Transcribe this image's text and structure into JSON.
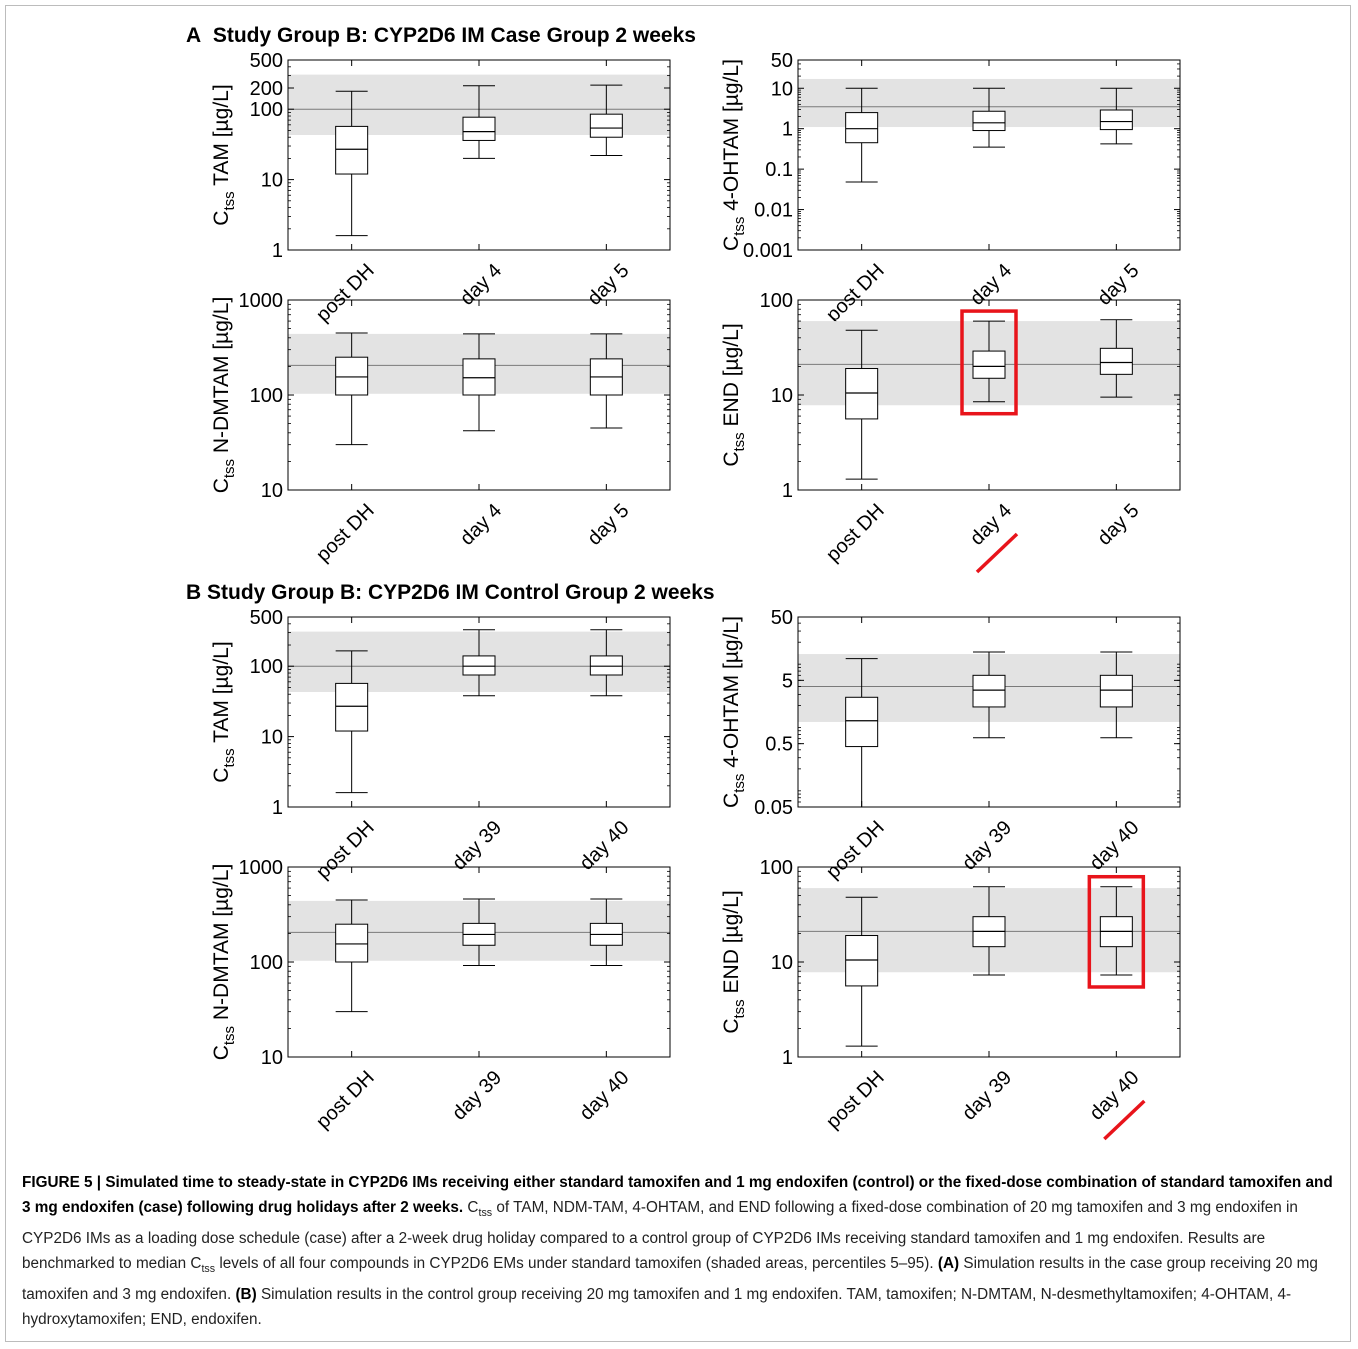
{
  "panels": [
    {
      "label": "A",
      "title": "Study Group B: CYP2D6 IM Case Group 2 weeks",
      "charts": [
        {
          "type": "box",
          "ylabel": "TAM [µg/L]",
          "yscale": "log",
          "ylim": [
            1,
            500
          ],
          "yticks": [
            "1",
            "10",
            "100",
            "200",
            "500"
          ],
          "categories": [
            "post DH",
            "day 4",
            "day 5"
          ],
          "reference_band": {
            "p5": 43,
            "median": 100,
            "p95": 310
          },
          "boxes": [
            {
              "min": 1.6,
              "q1": 12,
              "median": 27,
              "q3": 57,
              "max": 180
            },
            {
              "min": 20,
              "q1": 36,
              "median": 48,
              "q3": 77,
              "max": 215
            },
            {
              "min": 22,
              "q1": 40,
              "median": 54,
              "q3": 85,
              "max": 220
            }
          ]
        },
        {
          "type": "box",
          "ylabel": "4-OHTAM [µg/L]",
          "yscale": "log",
          "ylim": [
            0.001,
            50
          ],
          "yticks": [
            "0.001",
            "0.01",
            "0.1",
            "1",
            "10",
            "50"
          ],
          "categories": [
            "post DH",
            "day 4",
            "day 5"
          ],
          "reference_band": {
            "p5": 1.1,
            "median": 3.5,
            "p95": 17
          },
          "boxes": [
            {
              "min": 0.048,
              "q1": 0.45,
              "median": 1.0,
              "q3": 2.5,
              "max": 10
            },
            {
              "min": 0.35,
              "q1": 0.9,
              "median": 1.4,
              "q3": 2.7,
              "max": 10
            },
            {
              "min": 0.42,
              "q1": 0.95,
              "median": 1.5,
              "q3": 2.9,
              "max": 10
            }
          ]
        },
        {
          "type": "box",
          "ylabel": "N-DMTAM [µg/L]",
          "yscale": "log",
          "ylim": [
            10,
            1000
          ],
          "yticks": [
            "10",
            "100",
            "1000"
          ],
          "categories": [
            "post DH",
            "day 4",
            "day 5"
          ],
          "reference_band": {
            "p5": 103,
            "median": 205,
            "p95": 440
          },
          "boxes": [
            {
              "min": 30,
              "q1": 100,
              "median": 155,
              "q3": 250,
              "max": 450
            },
            {
              "min": 42,
              "q1": 100,
              "median": 152,
              "q3": 240,
              "max": 440
            },
            {
              "min": 45,
              "q1": 100,
              "median": 155,
              "q3": 240,
              "max": 440
            }
          ]
        },
        {
          "type": "box",
          "ylabel": "END [µg/L]",
          "yscale": "log",
          "ylim": [
            1,
            100
          ],
          "yticks": [
            "1",
            "10",
            "100"
          ],
          "categories": [
            "post DH",
            "day 4",
            "day 5"
          ],
          "reference_band": {
            "p5": 7.8,
            "median": 21,
            "p95": 60
          },
          "highlight_index": 1,
          "boxes": [
            {
              "min": 1.3,
              "q1": 5.6,
              "median": 10.5,
              "q3": 19,
              "max": 48
            },
            {
              "min": 8.5,
              "q1": 15,
              "median": 20,
              "q3": 29,
              "max": 60
            },
            {
              "min": 9.5,
              "q1": 16.5,
              "median": 22,
              "q3": 31,
              "max": 62
            }
          ]
        }
      ]
    },
    {
      "label": "B",
      "title": "Study Group B: CYP2D6 IM Control Group 2 weeks",
      "charts": [
        {
          "type": "box",
          "ylabel": "TAM [µg/L]",
          "yscale": "log",
          "ylim": [
            1,
            500
          ],
          "yticks": [
            "1",
            "10",
            "100",
            "500"
          ],
          "categories": [
            "post DH",
            "day 39",
            "day 40"
          ],
          "reference_band": {
            "p5": 43,
            "median": 100,
            "p95": 310
          },
          "boxes": [
            {
              "min": 1.6,
              "q1": 12,
              "median": 27,
              "q3": 57,
              "max": 165
            },
            {
              "min": 38,
              "q1": 75,
              "median": 100,
              "q3": 140,
              "max": 330
            },
            {
              "min": 38,
              "q1": 75,
              "median": 100,
              "q3": 140,
              "max": 330
            }
          ]
        },
        {
          "type": "box",
          "ylabel": "4-OHTAM [µg/L]",
          "yscale": "log",
          "ylim": [
            0.05,
            50
          ],
          "yticks": [
            "0.05",
            "0.5",
            "5",
            "50"
          ],
          "categories": [
            "post DH",
            "day 39",
            "day 40"
          ],
          "reference_band": {
            "p5": 1.1,
            "median": 4,
            "p95": 13
          },
          "boxes": [
            {
              "min": 0.05,
              "q1": 0.45,
              "median": 1.15,
              "q3": 2.7,
              "max": 11
            },
            {
              "min": 0.62,
              "q1": 1.9,
              "median": 3.5,
              "q3": 6.0,
              "max": 14
            },
            {
              "min": 0.62,
              "q1": 1.9,
              "median": 3.5,
              "q3": 6.0,
              "max": 14
            }
          ]
        },
        {
          "type": "box",
          "ylabel": "N-DMTAM [µg/L]",
          "yscale": "log",
          "ylim": [
            10,
            1000
          ],
          "yticks": [
            "10",
            "100",
            "1000"
          ],
          "categories": [
            "post DH",
            "day 39",
            "day 40"
          ],
          "reference_band": {
            "p5": 103,
            "median": 205,
            "p95": 440
          },
          "boxes": [
            {
              "min": 30,
              "q1": 100,
              "median": 155,
              "q3": 250,
              "max": 450
            },
            {
              "min": 92,
              "q1": 150,
              "median": 195,
              "q3": 255,
              "max": 460
            },
            {
              "min": 92,
              "q1": 150,
              "median": 195,
              "q3": 255,
              "max": 460
            }
          ]
        },
        {
          "type": "box",
          "ylabel": "END [µg/L]",
          "yscale": "log",
          "ylim": [
            1,
            100
          ],
          "yticks": [
            "1",
            "10",
            "100"
          ],
          "categories": [
            "post DH",
            "day 39",
            "day 40"
          ],
          "reference_band": {
            "p5": 7.8,
            "median": 21,
            "p95": 60
          },
          "highlight_index": 2,
          "boxes": [
            {
              "min": 1.3,
              "q1": 5.6,
              "median": 10.5,
              "q3": 19,
              "max": 48
            },
            {
              "min": 7.3,
              "q1": 14.5,
              "median": 21,
              "q3": 30,
              "max": 62
            },
            {
              "min": 7.3,
              "q1": 14.5,
              "median": 21,
              "q3": 30,
              "max": 62
            }
          ]
        }
      ]
    }
  ],
  "ylabel_prefix": "C",
  "ylabel_subscript": "tss",
  "colors": {
    "band": "#e3e3e3",
    "highlight": "#e8141b",
    "axis": "#000000",
    "median_line": "#7a7a7a"
  },
  "caption": {
    "figure_label": "FIGURE 5 | Simulated time to steady-state in CYP2D6 IMs receiving either standard tamoxifen and 1 mg endoxifen (control) or the fixed-dose combination of standard tamoxifen and 3 mg endoxifen (case) following drug holidays after 2 weeks.",
    "c": "C",
    "tss": "tss",
    "intro": "of TAM, NDM-TAM, 4-OHTAM, and END following a fixed-dose combination of 20 mg tamoxifen and 3 mg endoxifen in CYP2D6 IMs as a loading dose schedule (case) after a 2-week drug holiday compared to a control group of CYP2D6 IMs receiving standard tamoxifen and 1 mg endoxifen. Results are benchmarked to median",
    "c2": "C",
    "tss2": "tss",
    "bench": "levels of all four compounds in CYP2D6 EMs under standard tamoxifen (shaded areas, percentiles 5–95).",
    "a_label": "(A)",
    "a_text": "Simulation results in the case group receiving 20 mg tamoxifen and 3 mg endoxifen.",
    "b_label": "(B)",
    "b_text": "Simulation results in the control group receiving 20 mg tamoxifen and 1 mg endoxifen. TAM, tamoxifen; N-DMTAM, N-desmethyltamoxifen; 4-OHTAM, 4-hydroxytamoxifen; END, endoxifen."
  }
}
